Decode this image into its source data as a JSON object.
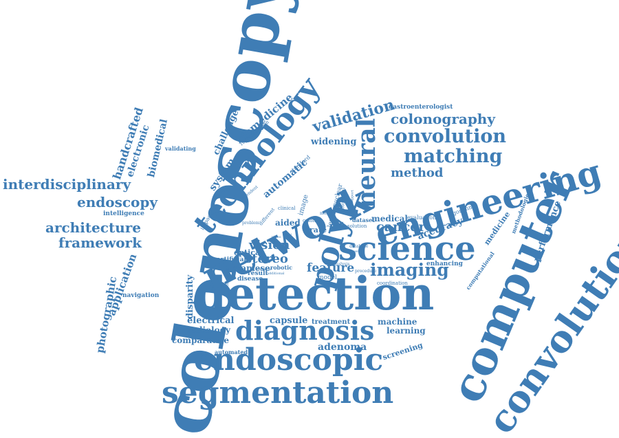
{
  "word_cloud": {
    "color": "#3f7db5",
    "background": "#ffffff",
    "words": [
      {
        "id": "colonoscopy",
        "text": "colonoscopy"
      },
      {
        "id": "detection",
        "text": "detection"
      },
      {
        "id": "computer",
        "text": "computer"
      },
      {
        "id": "convolutional",
        "text": "convolutional"
      },
      {
        "id": "engineering",
        "text": "engineering"
      },
      {
        "id": "network",
        "text": "network"
      },
      {
        "id": "technology",
        "text": "technology"
      },
      {
        "id": "science",
        "text": "science"
      },
      {
        "id": "segmentation",
        "text": "segmentation"
      },
      {
        "id": "endoscopic",
        "text": "endoscopic"
      },
      {
        "id": "diagnosis",
        "text": "diagnosis"
      },
      {
        "id": "polyp",
        "text": "polyp"
      },
      {
        "id": "neural",
        "text": "neural"
      },
      {
        "id": "convolution",
        "text": "convolution"
      },
      {
        "id": "matching",
        "text": "matching"
      },
      {
        "id": "validation",
        "text": "validation"
      },
      {
        "id": "colonography",
        "text": "colonography"
      },
      {
        "id": "imaging",
        "text": "imaging"
      },
      {
        "id": "interdisciplinary",
        "text": "interdisciplinary"
      },
      {
        "id": "endoscopy",
        "text": "endoscopy"
      },
      {
        "id": "architecture",
        "text": "architecture"
      },
      {
        "id": "framework",
        "text": "framework"
      },
      {
        "id": "method",
        "text": "method"
      },
      {
        "id": "cancer",
        "text": "cancer"
      },
      {
        "id": "accuracy",
        "text": "accuracy"
      },
      {
        "id": "medical",
        "text": "medical"
      },
      {
        "id": "vision",
        "text": "vision"
      },
      {
        "id": "stereo",
        "text": "stereo"
      },
      {
        "id": "feature",
        "text": "feature"
      },
      {
        "id": "siamese",
        "text": "siamese"
      },
      {
        "id": "optical",
        "text": "optical"
      },
      {
        "id": "aided",
        "text": "aided"
      },
      {
        "id": "capsule",
        "text": "capsule"
      },
      {
        "id": "electrical",
        "text": "electrical"
      },
      {
        "id": "radiology",
        "text": "radiology"
      },
      {
        "id": "comparative",
        "text": "comparative"
      },
      {
        "id": "adenoma",
        "text": "adenoma"
      },
      {
        "id": "machine",
        "text": "machine"
      },
      {
        "id": "learning",
        "text": "learning"
      },
      {
        "id": "screening",
        "text": "screening"
      },
      {
        "id": "handcrafted",
        "text": "handcrafted"
      },
      {
        "id": "electronic",
        "text": "electronic"
      },
      {
        "id": "biomedical",
        "text": "biomedical"
      },
      {
        "id": "biomedicine",
        "text": "biomedicine"
      },
      {
        "id": "challenge",
        "text": "challenge"
      },
      {
        "id": "system",
        "text": "system"
      },
      {
        "id": "automatic",
        "text": "automatic"
      },
      {
        "id": "widening",
        "text": "widening"
      },
      {
        "id": "photographic",
        "text": "photographic"
      },
      {
        "id": "application",
        "text": "application"
      },
      {
        "id": "navigation",
        "text": "navigation"
      },
      {
        "id": "disparity",
        "text": "disparity"
      },
      {
        "id": "performance",
        "text": "performance"
      },
      {
        "id": "medicine",
        "text": "medicine"
      },
      {
        "id": "methodologies",
        "text": "methodologies"
      },
      {
        "id": "computational",
        "text": "computational"
      },
      {
        "id": "enhancing",
        "text": "enhancing"
      },
      {
        "id": "evaluation",
        "text": "evaluation"
      },
      {
        "id": "algorithm",
        "text": "algorithm"
      },
      {
        "id": "gastroenterologist",
        "text": "gastroenterologist"
      },
      {
        "id": "intelligence",
        "text": "intelligence"
      },
      {
        "id": "validating",
        "text": "validating"
      },
      {
        "id": "representation",
        "text": "representation"
      },
      {
        "id": "standard",
        "text": "standard"
      },
      {
        "id": "impact",
        "text": "impact"
      },
      {
        "id": "result",
        "text": "result"
      },
      {
        "id": "disease",
        "text": "disease"
      },
      {
        "id": "robotic",
        "text": "robotic"
      },
      {
        "id": "artificial",
        "text": "artificial"
      },
      {
        "id": "automated",
        "text": "automated"
      },
      {
        "id": "treatment",
        "text": "treatment"
      },
      {
        "id": "rate",
        "text": "rate"
      },
      {
        "id": "dataset",
        "text": "dataset"
      },
      {
        "id": "model",
        "text": "model"
      },
      {
        "id": "image",
        "text": "image"
      },
      {
        "id": "nuclear",
        "text": "nuclear"
      },
      {
        "id": "lesion",
        "text": "lesion"
      },
      {
        "id": "colorectal",
        "text": "colorectal"
      },
      {
        "id": "solution",
        "text": "solution"
      },
      {
        "id": "coordination",
        "text": "coordination"
      },
      {
        "id": "database",
        "text": "database"
      },
      {
        "id": "procedure",
        "text": "procedure"
      },
      {
        "id": "analysis",
        "text": "analysis"
      },
      {
        "id": "clinical",
        "text": "clinical"
      },
      {
        "id": "colon",
        "text": "colon"
      },
      {
        "id": "different",
        "text": "different"
      },
      {
        "id": "dependent",
        "text": "dependent"
      },
      {
        "id": "problem",
        "text": "problem"
      },
      {
        "id": "computed",
        "text": "computed"
      },
      {
        "id": "additional",
        "text": "additional"
      },
      {
        "id": "essential",
        "text": "essential"
      },
      {
        "id": "most",
        "text": "most"
      },
      {
        "id": "video",
        "text": "video"
      },
      {
        "id": "level",
        "text": "level"
      },
      {
        "id": "state",
        "text": "state"
      },
      {
        "id": "present",
        "text": "present"
      },
      {
        "id": "support",
        "text": "support"
      }
    ]
  }
}
